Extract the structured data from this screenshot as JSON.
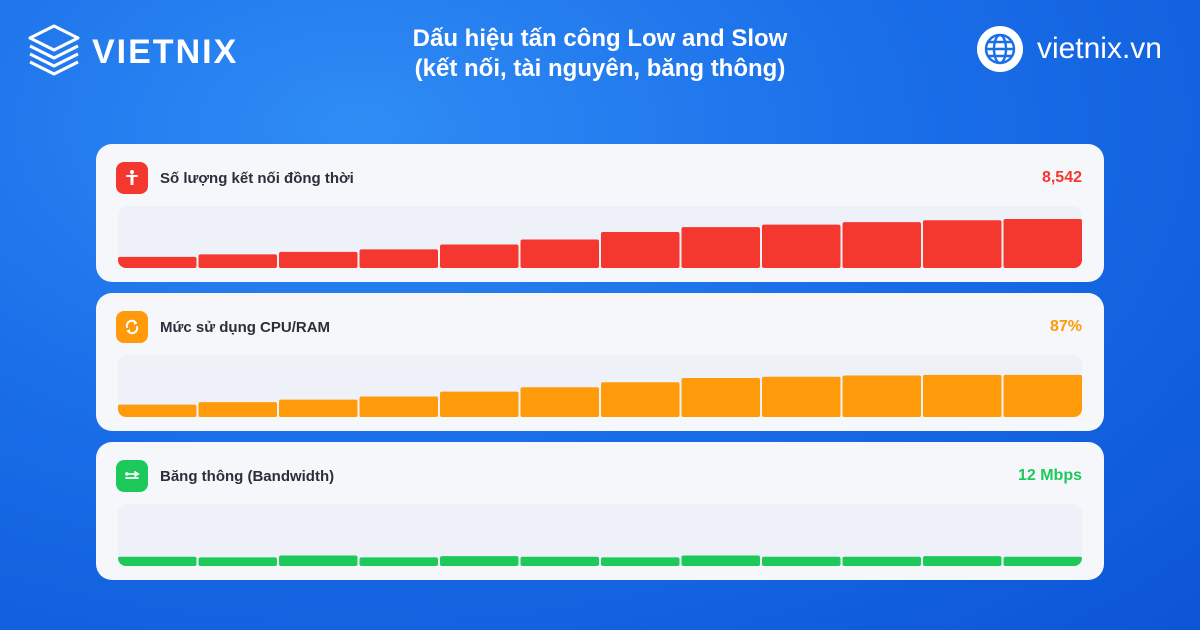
{
  "brand": {
    "logo_text": "VIETNIX",
    "logo_icon": "server-stack-icon",
    "site_text": "vietnix.vn",
    "site_icon": "globe-icon"
  },
  "header": {
    "title_line1": "Dấu hiệu tấn công Low and Slow",
    "title_line2": "(kết nối, tài nguyên, băng thông)"
  },
  "chart_data": [
    {
      "type": "bar",
      "title": "Số lượng kết nối đồng thời",
      "value_label": "8,542",
      "icon": "person-icon",
      "color": "#f4372f",
      "values": [
        18,
        22,
        26,
        30,
        38,
        46,
        58,
        66,
        70,
        74,
        77,
        79
      ],
      "ylim": [
        0,
        100
      ]
    },
    {
      "type": "bar",
      "title": "Mức sử dụng CPU/RAM",
      "value_label": "87%",
      "icon": "processor-icon",
      "color": "#ff9a0a",
      "values": [
        20,
        24,
        28,
        33,
        41,
        48,
        56,
        63,
        65,
        67,
        68,
        68
      ],
      "ylim": [
        0,
        100
      ]
    },
    {
      "type": "bar",
      "title": "Băng thông (Bandwidth)",
      "value_label": "12 Mbps",
      "icon": "network-icon",
      "color": "#1dc95a",
      "values": [
        15,
        14,
        17,
        14,
        16,
        15,
        14,
        17,
        15,
        15,
        16,
        15
      ],
      "ylim": [
        0,
        100
      ]
    }
  ]
}
